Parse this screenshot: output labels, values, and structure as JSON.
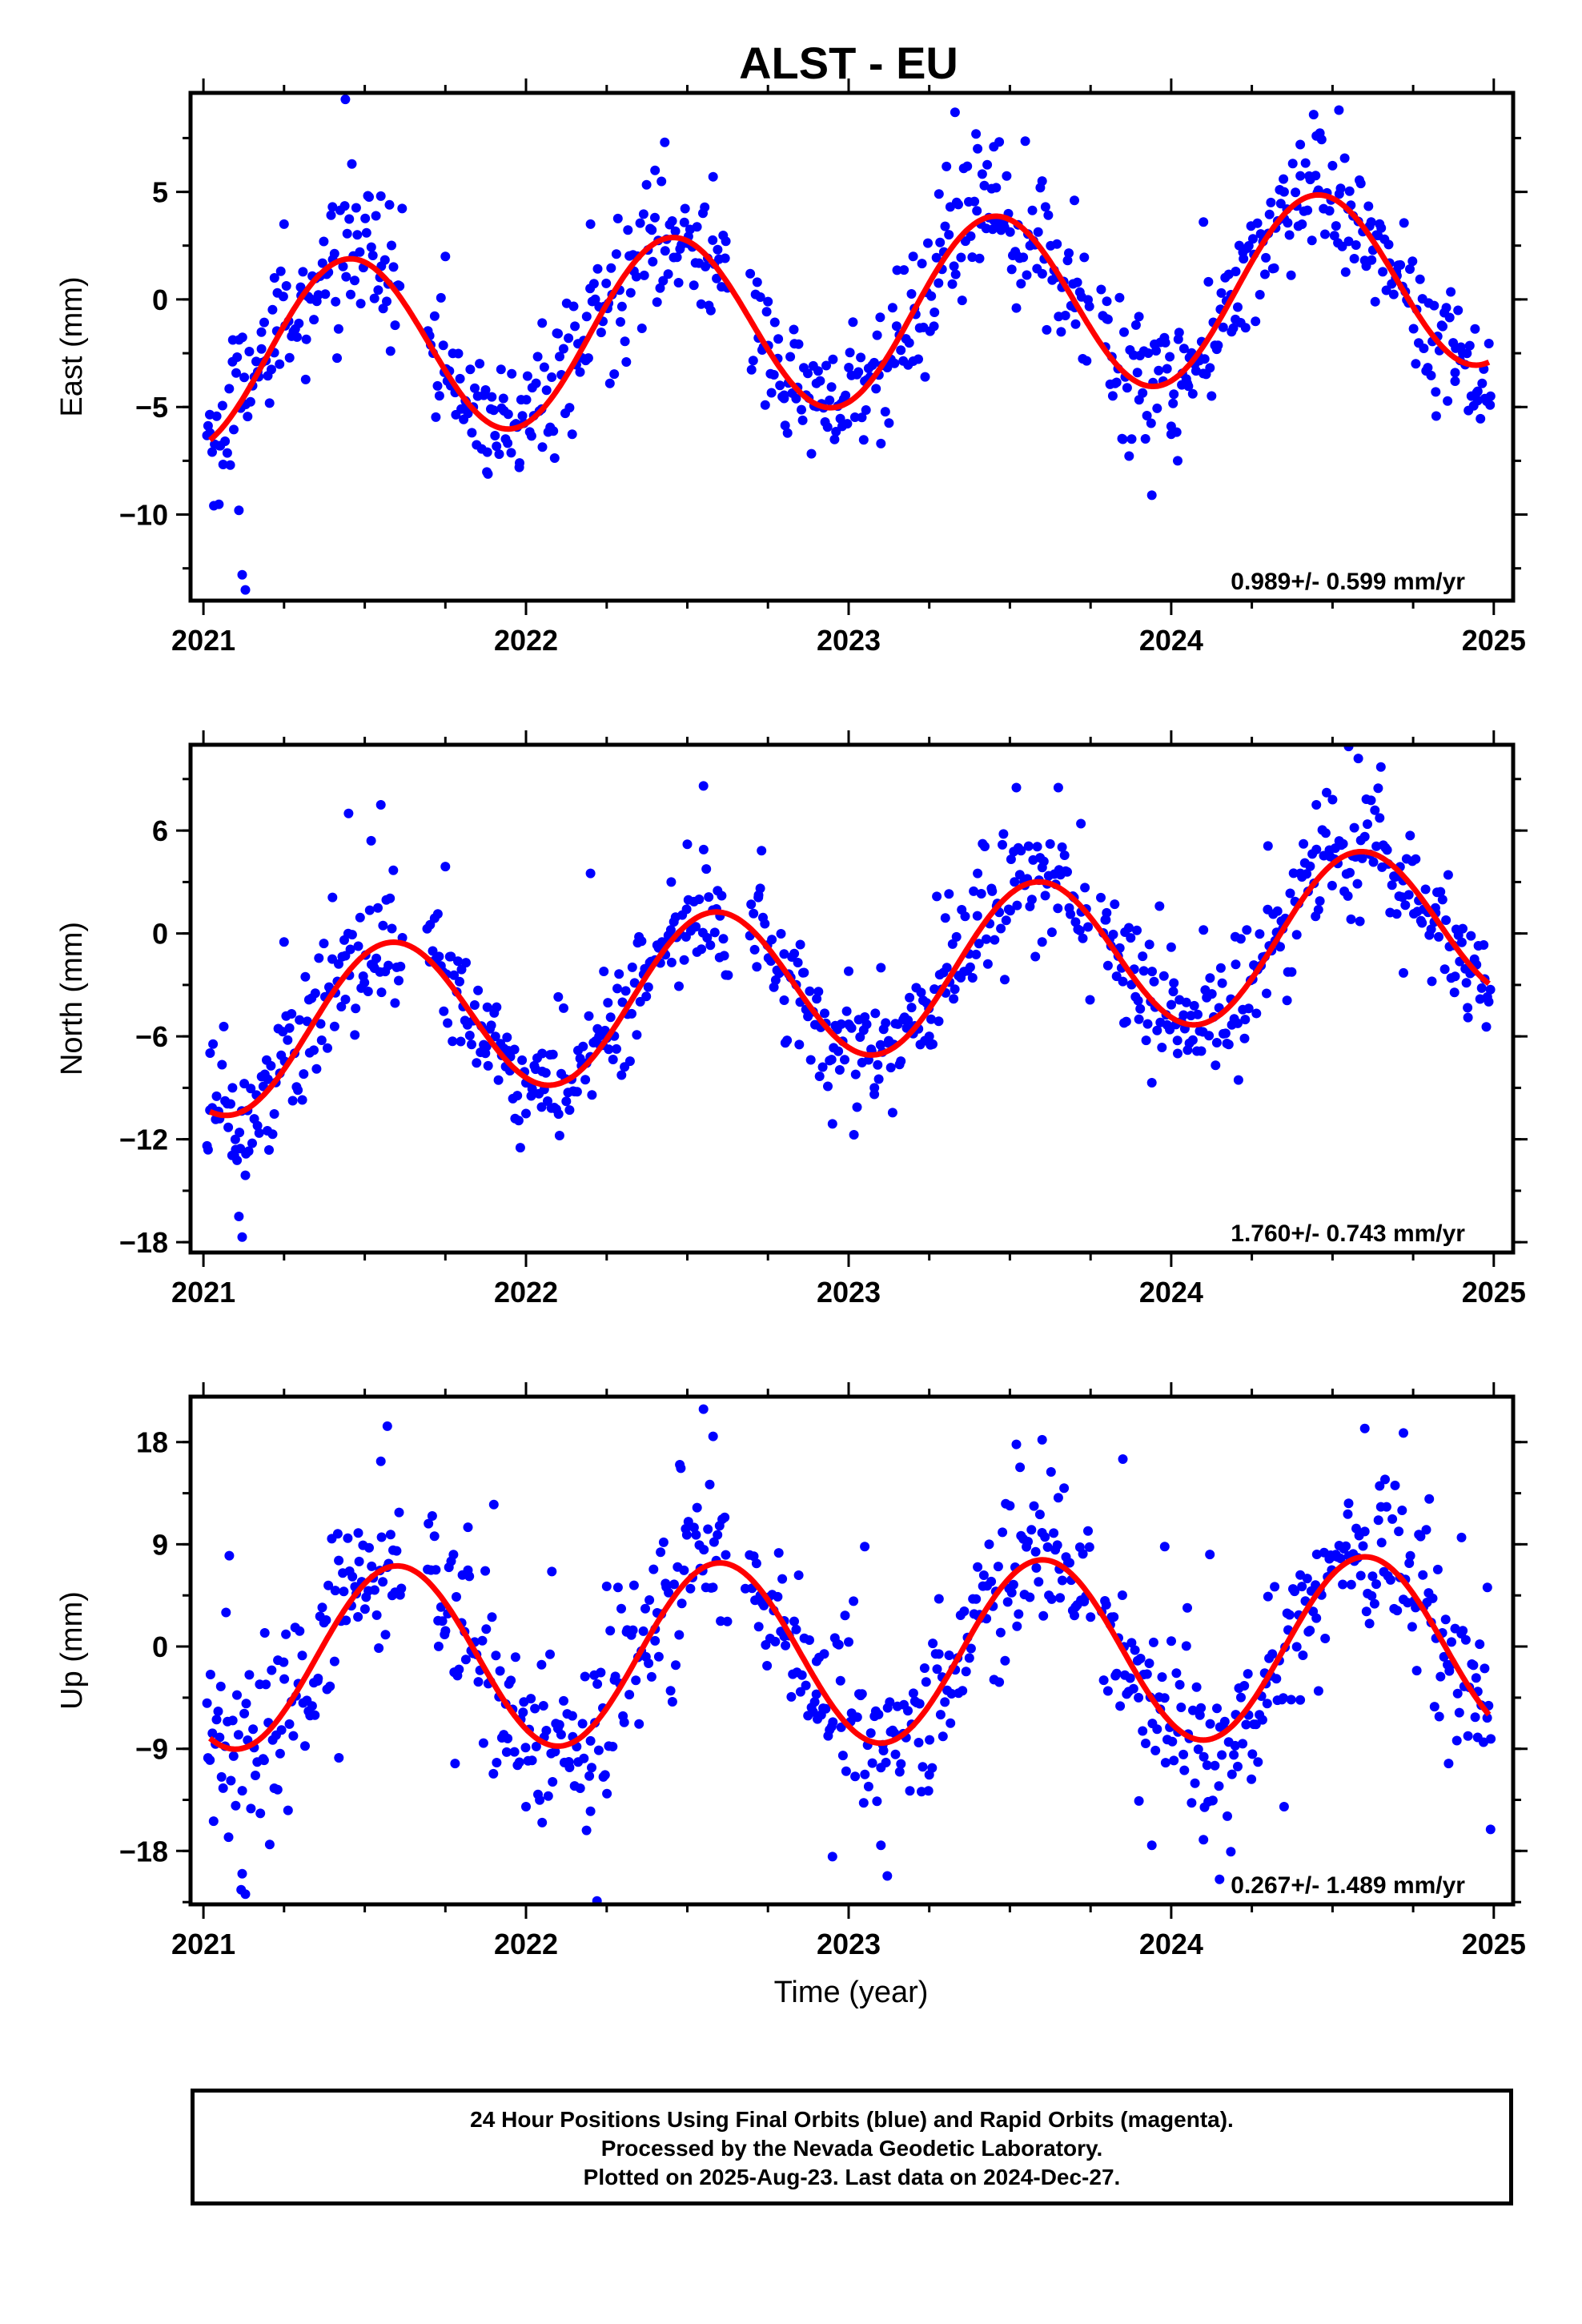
{
  "title": "ALST - EU",
  "xlabel": "Time (year)",
  "footer": {
    "line1": "24 Hour Positions Using Final Orbits (blue) and Rapid Orbits (magenta).",
    "line2": "Processed by the Nevada Geodetic Laboratory.",
    "line3": "Plotted on 2025-Aug-23. Last data on 2024-Dec-27."
  },
  "colors": {
    "points": "#0000ff",
    "fit": "#ff0000",
    "axes": "#000000"
  },
  "chart_data": [
    {
      "type": "scatter",
      "ylabel": "East (mm)",
      "xlim": [
        2020.96,
        2025.06
      ],
      "ylim": [
        -14,
        9.6
      ],
      "xticks": [
        2021,
        2022,
        2023,
        2024,
        2025
      ],
      "yticks": [
        -10,
        -5,
        0,
        5
      ],
      "rate_label": "0.989+/- 0.599 mm/yr",
      "fit": {
        "offset": -0.78,
        "rate": 0.989,
        "amplitude": 4.2,
        "phase": 0.2
      },
      "scatter": {
        "noise": 1.5
      },
      "series": [
        {
          "values": [
            [
              2021.02,
              -6.2
            ],
            [
              2021.05,
              -6.8
            ],
            [
              2021.09,
              -2.9
            ],
            [
              2021.11,
              -9.8
            ],
            [
              2021.12,
              -12.8
            ],
            [
              2021.13,
              -13.5
            ],
            [
              2021.18,
              -2.3
            ],
            [
              2021.22,
              1.0
            ],
            [
              2021.25,
              3.5
            ],
            [
              2021.4,
              4.3
            ],
            [
              2021.44,
              9.3
            ],
            [
              2021.46,
              6.3
            ],
            [
              2021.55,
              4.8
            ],
            [
              2021.58,
              -2.4
            ],
            [
              2021.75,
              2.0
            ],
            [
              2021.82,
              -5.3
            ],
            [
              2021.88,
              -7.1
            ],
            [
              2021.93,
              -4.6
            ],
            [
              2021.98,
              -7.6
            ],
            [
              2022.05,
              -1.1
            ],
            [
              2022.2,
              3.5
            ],
            [
              2022.26,
              -3.9
            ],
            [
              2022.4,
              6.0
            ],
            [
              2022.43,
              7.3
            ],
            [
              2022.5,
              2.7
            ],
            [
              2022.58,
              5.7
            ],
            [
              2022.75,
              -0.1
            ],
            [
              2022.8,
              -4.6
            ],
            [
              2022.83,
              -1.4
            ],
            [
              2022.9,
              -3.9
            ],
            [
              2022.98,
              -5.9
            ],
            [
              2023.05,
              -3.8
            ],
            [
              2023.1,
              -6.7
            ],
            [
              2023.2,
              2.0
            ],
            [
              2023.28,
              4.9
            ],
            [
              2023.33,
              8.7
            ],
            [
              2023.4,
              7.0
            ],
            [
              2023.45,
              7.1
            ],
            [
              2023.52,
              -0.4
            ],
            [
              2023.6,
              5.5
            ],
            [
              2023.7,
              4.6
            ],
            [
              2023.8,
              -0.9
            ],
            [
              2023.85,
              -6.5
            ],
            [
              2023.9,
              -0.8
            ],
            [
              2023.94,
              -9.1
            ],
            [
              2024.0,
              -5.9
            ],
            [
              2024.02,
              -7.5
            ],
            [
              2024.05,
              -3.9
            ],
            [
              2024.1,
              3.6
            ],
            [
              2024.2,
              1.3
            ],
            [
              2024.35,
              5.0
            ],
            [
              2024.4,
              7.2
            ],
            [
              2024.45,
              7.6
            ],
            [
              2024.52,
              8.8
            ],
            [
              2024.55,
              2.7
            ],
            [
              2024.62,
              3.6
            ],
            [
              2024.7,
              1.1
            ],
            [
              2024.82,
              -4.3
            ],
            [
              2024.88,
              -3.8
            ],
            [
              2024.95,
              -4.7
            ],
            [
              2024.99,
              -4.5
            ]
          ]
        }
      ]
    },
    {
      "type": "scatter",
      "ylabel": "North (mm)",
      "xlim": [
        2020.96,
        2025.06
      ],
      "ylim": [
        -18.6,
        11
      ],
      "xticks": [
        2021,
        2022,
        2023,
        2024,
        2025
      ],
      "yticks": [
        -18,
        -12,
        -6,
        0,
        6
      ],
      "rate_label": "1.760+/- 0.743 mm/yr",
      "fit": {
        "offset": -2.62,
        "rate": 1.76,
        "amplitude": 4.6,
        "phase": 0.33
      },
      "scatter": {
        "noise": 1.8
      },
      "series": [
        {
          "values": [
            [
              2021.02,
              -10.3
            ],
            [
              2021.05,
              -10.8
            ],
            [
              2021.09,
              -9.0
            ],
            [
              2021.1,
              -12.6
            ],
            [
              2021.11,
              -16.5
            ],
            [
              2021.12,
              -17.7
            ],
            [
              2021.13,
              -14.1
            ],
            [
              2021.2,
              -8.5
            ],
            [
              2021.25,
              -0.5
            ],
            [
              2021.4,
              2.1
            ],
            [
              2021.45,
              7.0
            ],
            [
              2021.52,
              5.4
            ],
            [
              2021.55,
              7.5
            ],
            [
              2021.44,
              -1.3
            ],
            [
              2021.75,
              3.9
            ],
            [
              2021.8,
              -2.1
            ],
            [
              2021.88,
              -4.3
            ],
            [
              2021.95,
              -8.0
            ],
            [
              2022.0,
              -10.5
            ],
            [
              2022.05,
              -7.0
            ],
            [
              2022.1,
              -3.7
            ],
            [
              2022.2,
              3.5
            ],
            [
              2022.25,
              -6.1
            ],
            [
              2022.35,
              -0.2
            ],
            [
              2022.45,
              3.0
            ],
            [
              2022.5,
              5.2
            ],
            [
              2022.55,
              8.6
            ],
            [
              2022.6,
              -1.4
            ],
            [
              2022.72,
              2.1
            ],
            [
              2022.8,
              -1.2
            ],
            [
              2022.85,
              -4.0
            ],
            [
              2022.95,
              -11.1
            ],
            [
              2023.0,
              -2.2
            ],
            [
              2023.08,
              -9.0
            ],
            [
              2023.1,
              -2.0
            ],
            [
              2023.25,
              -6.0
            ],
            [
              2023.3,
              0.9
            ],
            [
              2023.4,
              3.5
            ],
            [
              2023.48,
              5.8
            ],
            [
              2023.52,
              8.5
            ],
            [
              2023.6,
              -0.5
            ],
            [
              2023.65,
              8.5
            ],
            [
              2023.72,
              6.4
            ],
            [
              2023.8,
              1.2
            ],
            [
              2023.85,
              -2.8
            ],
            [
              2023.9,
              -5.0
            ],
            [
              2023.94,
              -8.7
            ],
            [
              2024.0,
              -0.8
            ],
            [
              2024.02,
              -7.0
            ],
            [
              2024.1,
              0.2
            ],
            [
              2024.2,
              -1.8
            ],
            [
              2024.3,
              5.1
            ],
            [
              2024.4,
              3.5
            ],
            [
              2024.45,
              7.5
            ],
            [
              2024.5,
              7.8
            ],
            [
              2024.55,
              10.9
            ],
            [
              2024.58,
              10.2
            ],
            [
              2024.65,
              9.7
            ],
            [
              2024.72,
              -2.3
            ],
            [
              2024.82,
              1.2
            ],
            [
              2024.88,
              -2.5
            ],
            [
              2024.92,
              -4.9
            ],
            [
              2024.98,
              -3.7
            ]
          ]
        }
      ]
    },
    {
      "type": "scatter",
      "ylabel": "Up (mm)",
      "xlim": [
        2020.96,
        2025.06
      ],
      "ylim": [
        -22.7,
        22
      ],
      "xticks": [
        2021,
        2022,
        2023,
        2024,
        2025
      ],
      "yticks": [
        -18,
        -9,
        0,
        9,
        18
      ],
      "rate_label": "0.267+/- 1.489 mm/yr",
      "fit": {
        "offset": -0.53,
        "rate": 0.267,
        "amplitude": 8.0,
        "phase": 0.35
      },
      "scatter": {
        "noise": 3.5
      },
      "series": [
        {
          "values": [
            [
              2021.02,
              -10.0
            ],
            [
              2021.05,
              -8.0
            ],
            [
              2021.07,
              3.0
            ],
            [
              2021.08,
              8.0
            ],
            [
              2021.12,
              -20.0
            ],
            [
              2021.13,
              -21.8
            ],
            [
              2021.19,
              1.2
            ],
            [
              2021.23,
              -12.6
            ],
            [
              2021.42,
              -9.8
            ],
            [
              2021.48,
              10.0
            ],
            [
              2021.55,
              16.3
            ],
            [
              2021.57,
              19.4
            ],
            [
              2021.78,
              -10.3
            ],
            [
              2021.82,
              10.5
            ],
            [
              2021.9,
              12.5
            ],
            [
              2021.94,
              -9.3
            ],
            [
              2022.0,
              -14.1
            ],
            [
              2022.05,
              -15.5
            ],
            [
              2022.08,
              6.6
            ],
            [
              2022.2,
              -14.5
            ],
            [
              2022.22,
              -22.4
            ],
            [
              2022.25,
              5.3
            ],
            [
              2022.4,
              0.5
            ],
            [
              2022.48,
              15.7
            ],
            [
              2022.55,
              20.9
            ],
            [
              2022.58,
              18.5
            ],
            [
              2022.68,
              5.1
            ],
            [
              2022.8,
              0.9
            ],
            [
              2022.9,
              -4.2
            ],
            [
              2022.95,
              -18.5
            ],
            [
              2023.0,
              0.4
            ],
            [
              2023.05,
              8.8
            ],
            [
              2023.1,
              -17.5
            ],
            [
              2023.12,
              -20.2
            ],
            [
              2023.25,
              -11.3
            ],
            [
              2023.28,
              4.2
            ],
            [
              2023.4,
              7.0
            ],
            [
              2023.5,
              12.4
            ],
            [
              2023.52,
              17.8
            ],
            [
              2023.6,
              18.2
            ],
            [
              2023.65,
              13.1
            ],
            [
              2023.75,
              2.6
            ],
            [
              2023.85,
              16.5
            ],
            [
              2023.9,
              -13.6
            ],
            [
              2023.94,
              -17.5
            ],
            [
              2023.98,
              8.8
            ],
            [
              2024.05,
              3.4
            ],
            [
              2024.1,
              -17.0
            ],
            [
              2024.12,
              8.1
            ],
            [
              2024.15,
              -20.5
            ],
            [
              2024.2,
              -6.0
            ],
            [
              2024.3,
              4.4
            ],
            [
              2024.35,
              -14.1
            ],
            [
              2024.4,
              -4.7
            ],
            [
              2024.45,
              2.5
            ],
            [
              2024.55,
              12.6
            ],
            [
              2024.6,
              19.2
            ],
            [
              2024.65,
              12.3
            ],
            [
              2024.72,
              18.8
            ],
            [
              2024.8,
              13.0
            ],
            [
              2024.86,
              -10.3
            ],
            [
              2024.9,
              9.6
            ],
            [
              2024.95,
              -8.0
            ],
            [
              2024.98,
              5.2
            ],
            [
              2024.99,
              -16.1
            ]
          ]
        }
      ]
    }
  ]
}
